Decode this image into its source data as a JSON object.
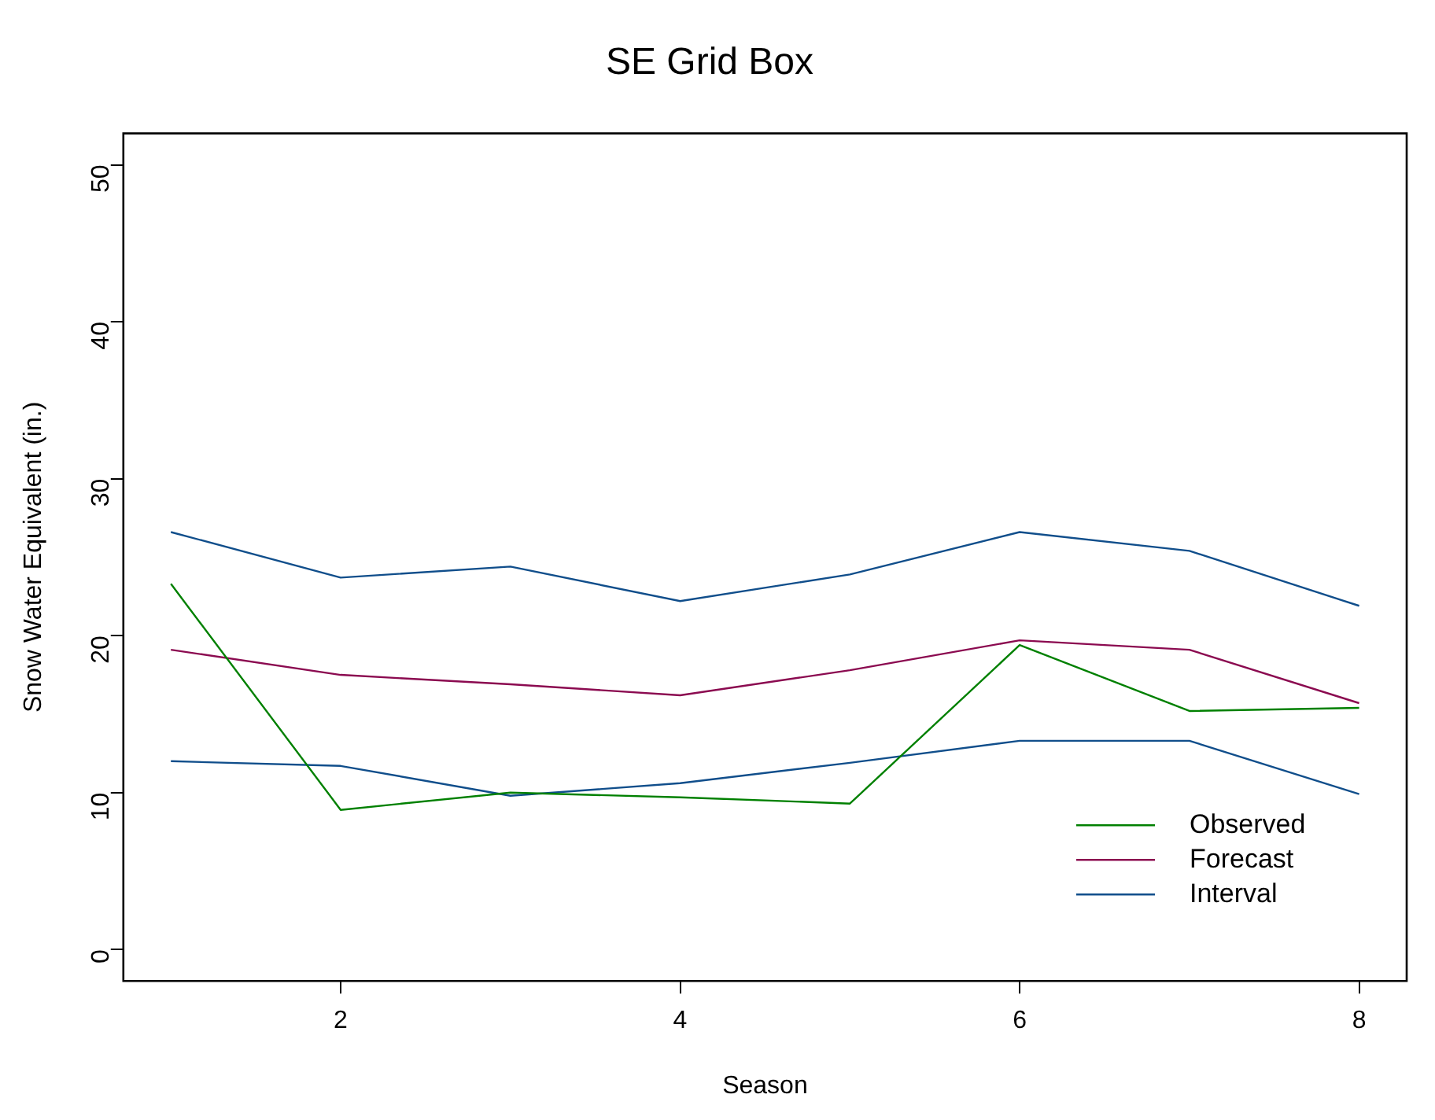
{
  "chart_data": {
    "type": "line",
    "title": "SE Grid Box",
    "xlabel": "Season",
    "ylabel": "Snow Water Equivalent (in.)",
    "x": [
      1,
      2,
      3,
      4,
      5,
      6,
      7,
      8
    ],
    "series": [
      {
        "name": "Observed",
        "color": "#008000",
        "values": [
          23.3,
          8.9,
          10.0,
          9.7,
          9.3,
          19.4,
          15.2,
          15.4
        ]
      },
      {
        "name": "Forecast",
        "color": "#8b0a50",
        "values": [
          19.1,
          17.5,
          16.9,
          16.2,
          17.8,
          19.7,
          19.1,
          15.7
        ]
      },
      {
        "name": "Interval",
        "color": "#104e8b",
        "values": [
          26.6,
          23.7,
          24.4,
          22.2,
          23.9,
          26.6,
          25.4,
          21.9
        ]
      },
      {
        "color": "#104e8b",
        "values": [
          12.0,
          11.7,
          9.8,
          10.6,
          11.9,
          13.3,
          13.3,
          9.9
        ]
      }
    ],
    "xlim": [
      0.72,
      8.28
    ],
    "xticks": [
      2,
      4,
      6,
      8
    ],
    "ylim": [
      -2,
      52
    ],
    "yticks": [
      0,
      10,
      20,
      30,
      40,
      50
    ],
    "grid": false,
    "legend": "bottom right",
    "marker": "none",
    "line_style": "solid"
  }
}
